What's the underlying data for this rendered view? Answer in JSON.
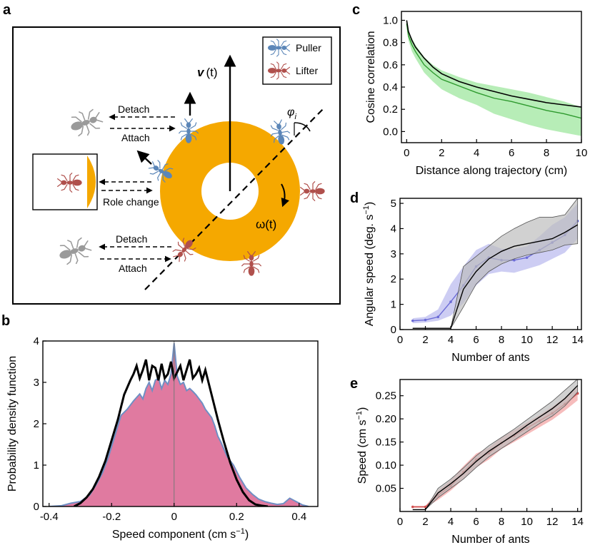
{
  "panels": {
    "a": {
      "letter": "a",
      "legend": [
        {
          "label": "Puller",
          "color": "#5b86b8",
          "icon": "ant-icon"
        },
        {
          "label": "Lifter",
          "color": "#b0504c",
          "icon": "ant-icon"
        }
      ],
      "velocity_label": "v",
      "velocity_arg": "(t)",
      "omega_label": "ω(t)",
      "phi_label": "φ",
      "phi_sub": "i",
      "detach_label": "Detach",
      "attach_label": "Attach",
      "role_change_label": "Role change",
      "ring_color": "#f5a800"
    },
    "b": {
      "letter": "b"
    },
    "c": {
      "letter": "c"
    },
    "d": {
      "letter": "d"
    },
    "e": {
      "letter": "e"
    }
  },
  "chart_data": [
    {
      "id": "b",
      "type": "area",
      "xlabel": "Speed component (cm s",
      "xlabel_sup": "−1",
      "xlabel_end": ")",
      "ylabel": "Probability density function",
      "xlim": [
        -0.42,
        0.46
      ],
      "ylim": [
        0,
        4
      ],
      "xticks": [
        -0.4,
        -0.2,
        0,
        0.2,
        0.4
      ],
      "xtick_labels": [
        "-0.4",
        "-0.2",
        "0",
        "0.2",
        "0.4"
      ],
      "yticks": [
        0,
        1,
        2,
        3,
        4
      ],
      "ytick_labels": [
        "0",
        "1",
        "2",
        "3",
        "4"
      ],
      "grid": false,
      "series": [
        {
          "style": "filled",
          "fill": "#e07aa0",
          "stroke": "#6f8fc4",
          "x": [
            -0.4,
            -0.36,
            -0.33,
            -0.3,
            -0.27,
            -0.25,
            -0.23,
            -0.21,
            -0.19,
            -0.17,
            -0.15,
            -0.13,
            -0.11,
            -0.1,
            -0.09,
            -0.08,
            -0.07,
            -0.06,
            -0.05,
            -0.04,
            -0.03,
            -0.02,
            -0.01,
            0.0,
            0.01,
            0.02,
            0.03,
            0.04,
            0.05,
            0.06,
            0.07,
            0.08,
            0.09,
            0.1,
            0.11,
            0.12,
            0.13,
            0.14,
            0.15,
            0.17,
            0.19,
            0.21,
            0.23,
            0.25,
            0.27,
            0.29,
            0.31,
            0.33,
            0.35,
            0.37,
            0.39,
            0.41,
            0.43
          ],
          "y": [
            0.0,
            0.02,
            0.08,
            0.12,
            0.28,
            0.52,
            0.8,
            1.2,
            1.7,
            2.2,
            2.35,
            2.55,
            2.72,
            2.6,
            2.85,
            3.0,
            2.8,
            3.05,
            3.1,
            2.85,
            3.05,
            2.95,
            3.2,
            3.95,
            3.15,
            2.95,
            3.0,
            2.8,
            2.85,
            2.78,
            2.7,
            2.6,
            2.5,
            2.35,
            2.25,
            2.15,
            1.95,
            1.7,
            1.55,
            1.2,
            1.0,
            0.7,
            0.45,
            0.3,
            0.18,
            0.12,
            0.08,
            0.05,
            0.07,
            0.2,
            0.12,
            0.04,
            0.0
          ]
        },
        {
          "style": "line",
          "stroke": "#000000",
          "x": [
            -0.32,
            -0.3,
            -0.28,
            -0.26,
            -0.24,
            -0.22,
            -0.2,
            -0.18,
            -0.16,
            -0.14,
            -0.13,
            -0.12,
            -0.11,
            -0.1,
            -0.09,
            -0.08,
            -0.07,
            -0.06,
            -0.05,
            -0.04,
            -0.03,
            -0.02,
            -0.01,
            0.0,
            0.01,
            0.02,
            0.03,
            0.04,
            0.05,
            0.06,
            0.07,
            0.08,
            0.09,
            0.1,
            0.11,
            0.12,
            0.13,
            0.14,
            0.16,
            0.18,
            0.2,
            0.22,
            0.24,
            0.26,
            0.28,
            0.3
          ],
          "y": [
            0.0,
            0.08,
            0.22,
            0.42,
            0.72,
            1.1,
            1.6,
            2.1,
            2.7,
            3.05,
            3.2,
            3.4,
            3.1,
            3.3,
            3.55,
            3.05,
            3.4,
            3.35,
            3.05,
            3.45,
            3.1,
            3.2,
            3.5,
            3.1,
            3.25,
            3.4,
            3.05,
            3.3,
            3.55,
            3.1,
            3.2,
            3.35,
            3.05,
            3.3,
            3.0,
            2.7,
            2.4,
            2.1,
            1.55,
            1.05,
            0.65,
            0.35,
            0.15,
            0.05,
            0.02,
            0.0
          ]
        }
      ]
    },
    {
      "id": "c",
      "type": "line",
      "xlabel": "Distance along trajectory (cm)",
      "ylabel": "Cosine correlation",
      "xlim": [
        -0.3,
        10
      ],
      "ylim": [
        -0.1,
        1.08
      ],
      "xticks": [
        0,
        2,
        4,
        6,
        8,
        10
      ],
      "xtick_labels": [
        "0",
        "2",
        "4",
        "6",
        "8",
        "10"
      ],
      "yticks": [
        0.0,
        0.2,
        0.4,
        0.6,
        0.8,
        1.0
      ],
      "ytick_labels": [
        "0.0",
        "0.2",
        "0.4",
        "0.6",
        "0.8",
        "1.0"
      ],
      "grid": false,
      "series": [
        {
          "style": "line-band",
          "color": "#2e9a2e",
          "fill": "#99e699",
          "x": [
            0,
            0.1,
            0.3,
            0.5,
            1,
            1.5,
            2,
            3,
            4,
            5,
            6,
            7,
            8,
            9,
            10
          ],
          "y": [
            0.97,
            0.86,
            0.78,
            0.72,
            0.6,
            0.53,
            0.47,
            0.41,
            0.35,
            0.3,
            0.27,
            0.23,
            0.19,
            0.16,
            0.12
          ],
          "lower": [
            0.95,
            0.82,
            0.72,
            0.66,
            0.53,
            0.45,
            0.38,
            0.3,
            0.24,
            0.16,
            0.11,
            0.06,
            0.02,
            -0.01,
            -0.04
          ],
          "upper": [
            0.99,
            0.9,
            0.84,
            0.78,
            0.67,
            0.6,
            0.55,
            0.49,
            0.44,
            0.41,
            0.38,
            0.35,
            0.31,
            0.27,
            0.22
          ]
        },
        {
          "style": "line",
          "color": "#000000",
          "x": [
            0,
            0.1,
            0.3,
            0.5,
            1,
            1.5,
            2,
            3,
            4,
            5,
            6,
            7,
            8,
            9,
            10
          ],
          "y": [
            1.0,
            0.9,
            0.82,
            0.76,
            0.66,
            0.58,
            0.52,
            0.45,
            0.4,
            0.36,
            0.32,
            0.29,
            0.26,
            0.24,
            0.22
          ]
        }
      ]
    },
    {
      "id": "d",
      "type": "line",
      "xlabel": "Number of ants",
      "ylabel": "Angular speed (deg. s",
      "ylabel_sup": "−1",
      "ylabel_end": ")",
      "xlim": [
        0,
        14.3
      ],
      "ylim": [
        0,
        5.2
      ],
      "xticks": [
        0,
        2,
        4,
        6,
        8,
        10,
        12,
        14
      ],
      "xtick_labels": [
        "0",
        "2",
        "4",
        "6",
        "8",
        "10",
        "12",
        "14"
      ],
      "yticks": [
        0,
        1,
        2,
        3,
        4,
        5
      ],
      "ytick_labels": [
        "0",
        "1",
        "2",
        "3",
        "4",
        "5"
      ],
      "grid": false,
      "series": [
        {
          "style": "line-band",
          "color": "#6b6bd6",
          "fill": "#b8b8ee",
          "markers": true,
          "x": [
            1,
            2,
            3,
            4,
            5,
            6,
            7,
            8,
            9,
            10,
            11,
            12,
            13,
            14
          ],
          "y": [
            0.35,
            0.38,
            0.5,
            1.1,
            1.75,
            2.5,
            2.85,
            2.75,
            2.75,
            2.85,
            3.15,
            3.45,
            3.75,
            4.3
          ],
          "lower": [
            0.25,
            0.28,
            0.35,
            0.55,
            1.05,
            1.75,
            2.2,
            2.3,
            2.25,
            2.4,
            2.55,
            2.8,
            3.05,
            3.6
          ],
          "upper": [
            0.45,
            0.5,
            0.8,
            1.8,
            2.5,
            3.15,
            3.4,
            3.2,
            3.2,
            3.3,
            3.7,
            4.15,
            4.45,
            5.0
          ]
        },
        {
          "style": "line-band",
          "color": "#000000",
          "fill": "#bdbdbd",
          "x": [
            1,
            2,
            3,
            4,
            5,
            6,
            7,
            8,
            9,
            10,
            11,
            12,
            13,
            14
          ],
          "y": [
            0.05,
            0.05,
            0.05,
            0.05,
            1.6,
            2.3,
            2.8,
            3.1,
            3.3,
            3.4,
            3.5,
            3.6,
            3.85,
            4.15
          ],
          "lower": [
            0.05,
            0.05,
            0.05,
            0.05,
            0.9,
            1.8,
            2.3,
            2.6,
            2.8,
            2.95,
            3.05,
            3.15,
            3.35,
            3.4
          ],
          "upper": [
            0.05,
            0.05,
            0.05,
            0.05,
            2.5,
            2.9,
            3.3,
            3.7,
            4.0,
            4.25,
            4.45,
            4.45,
            4.55,
            5.2
          ]
        }
      ]
    },
    {
      "id": "e",
      "type": "line",
      "xlabel": "Number of ants",
      "ylabel": "Speed (cm s",
      "ylabel_sup": "−1",
      "ylabel_end": ")",
      "xlim": [
        0,
        14.3
      ],
      "ylim": [
        0,
        0.285
      ],
      "xticks": [
        0,
        2,
        4,
        6,
        8,
        10,
        12,
        14
      ],
      "xtick_labels": [
        "0",
        "2",
        "4",
        "6",
        "8",
        "10",
        "12",
        "14"
      ],
      "yticks": [
        0.05,
        0.1,
        0.15,
        0.2,
        0.25
      ],
      "ytick_labels": [
        "0.05",
        "0.10",
        "0.15",
        "0.20",
        "0.25"
      ],
      "grid": false,
      "series": [
        {
          "style": "line-band",
          "color": "#d05050",
          "fill": "#f2a0a0",
          "markers": true,
          "x": [
            1,
            2,
            3,
            4,
            5,
            6,
            7,
            8,
            9,
            10,
            11,
            12,
            13,
            14
          ],
          "y": [
            0.01,
            0.01,
            0.035,
            0.055,
            0.085,
            0.112,
            0.126,
            0.148,
            0.164,
            0.18,
            0.196,
            0.212,
            0.232,
            0.255
          ],
          "lower": [
            0.008,
            0.008,
            0.025,
            0.045,
            0.07,
            0.095,
            0.112,
            0.135,
            0.15,
            0.166,
            0.182,
            0.198,
            0.218,
            0.24
          ],
          "upper": [
            0.012,
            0.012,
            0.045,
            0.068,
            0.098,
            0.125,
            0.138,
            0.16,
            0.176,
            0.192,
            0.208,
            0.226,
            0.246,
            0.268
          ]
        },
        {
          "style": "line-band",
          "color": "#000000",
          "fill": "#bdbdbd",
          "x": [
            1,
            2,
            3,
            4,
            5,
            6,
            7,
            8,
            9,
            10,
            11,
            12,
            13,
            14
          ],
          "y": [
            0.004,
            0.004,
            0.04,
            0.06,
            0.082,
            0.108,
            0.13,
            0.148,
            0.166,
            0.186,
            0.204,
            0.222,
            0.244,
            0.272
          ],
          "lower": [
            0.004,
            0.004,
            0.03,
            0.05,
            0.07,
            0.095,
            0.118,
            0.136,
            0.154,
            0.172,
            0.19,
            0.206,
            0.228,
            0.258
          ],
          "upper": [
            0.004,
            0.004,
            0.05,
            0.07,
            0.094,
            0.12,
            0.142,
            0.16,
            0.178,
            0.198,
            0.218,
            0.238,
            0.262,
            0.286
          ]
        }
      ]
    }
  ]
}
